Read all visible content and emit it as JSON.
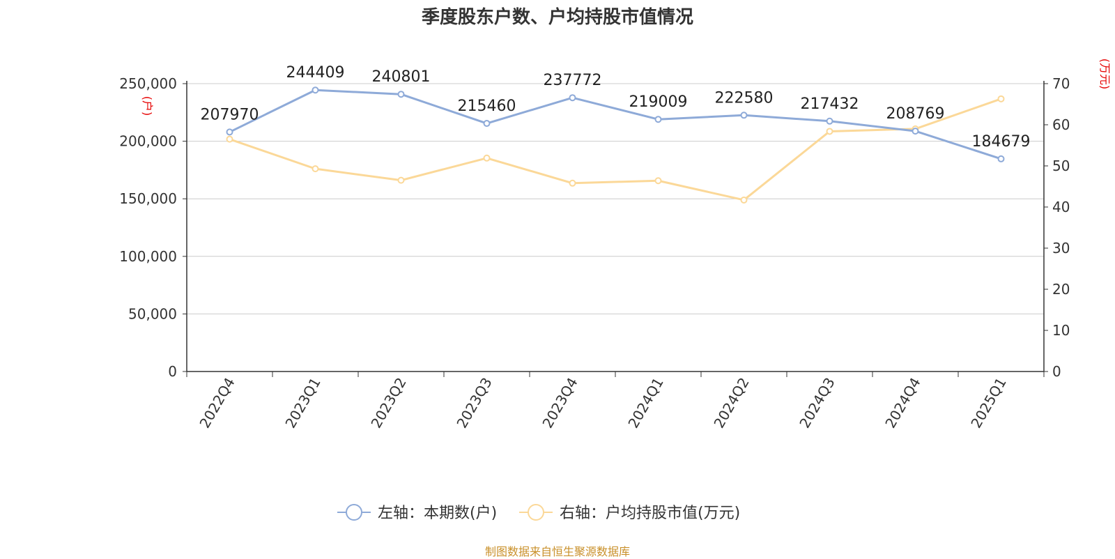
{
  "chart_data": {
    "type": "line",
    "title": "季度股东户数、户均持股市值情况",
    "categories": [
      "2022Q4",
      "2023Q1",
      "2023Q2",
      "2023Q3",
      "2023Q4",
      "2024Q1",
      "2024Q2",
      "2024Q3",
      "2024Q4",
      "2025Q1"
    ],
    "series": [
      {
        "name": "左轴：本期数(户)",
        "axis": "left",
        "color": "#8eaad8",
        "values": [
          207970,
          244409,
          240801,
          215460,
          237772,
          219009,
          222580,
          217432,
          208769,
          184679
        ],
        "labels": [
          "207970",
          "244409",
          "240801",
          "215460",
          "237772",
          "219009",
          "222580",
          "217432",
          "208769",
          "184679"
        ]
      },
      {
        "name": "右轴：户均持股市值(万元)",
        "axis": "right",
        "color": "#fbd898",
        "values": [
          56.5,
          49.3,
          46.5,
          51.9,
          45.8,
          46.4,
          41.7,
          58.4,
          59.0,
          66.3
        ]
      }
    ],
    "left_axis": {
      "unit": "(户)",
      "ylim": [
        0,
        250000
      ],
      "ticks": [
        0,
        50000,
        100000,
        150000,
        200000,
        250000
      ],
      "tick_labels": [
        "0",
        "50,000",
        "100,000",
        "150,000",
        "200,000",
        "250,000"
      ]
    },
    "right_axis": {
      "unit": "(万元)",
      "ylim": [
        0,
        70
      ],
      "ticks": [
        0,
        10,
        20,
        30,
        40,
        50,
        60,
        70
      ],
      "tick_labels": [
        "0",
        "10",
        "20",
        "30",
        "40",
        "50",
        "60",
        "70"
      ]
    },
    "grid": true,
    "legend_position": "bottom-center"
  },
  "footer": "制图数据来自恒生聚源数据库"
}
